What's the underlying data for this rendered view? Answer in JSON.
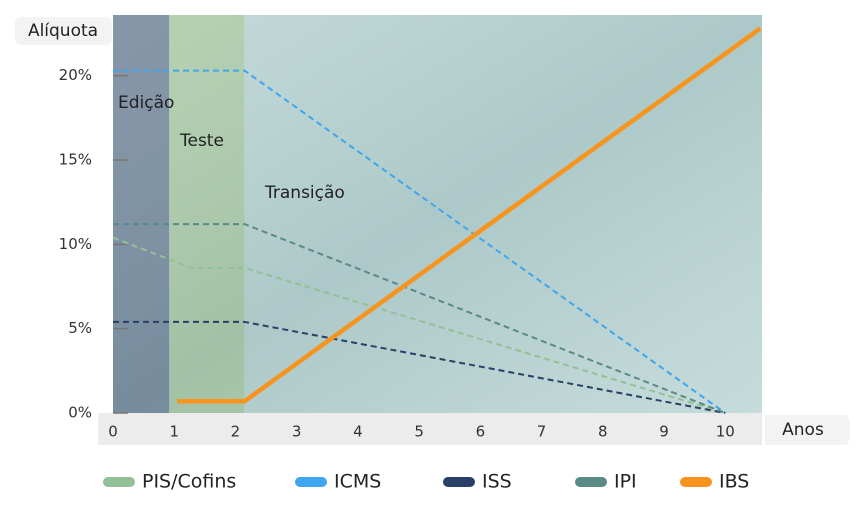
{
  "chart_data": {
    "type": "line",
    "y_label": "Alíquota",
    "x_label": "Anos",
    "phases": [
      {
        "label": "Edição",
        "start": 0,
        "end": 0.92,
        "color": "#6f8399"
      },
      {
        "label": "Teste",
        "start": 0.92,
        "end": 2.15,
        "color": "#a9c9a4"
      },
      {
        "label": "Transição",
        "start": 2.15,
        "end": 10.6,
        "color": "#b7d3d2"
      }
    ],
    "series": [
      {
        "name": "PIS/Cofins",
        "color": "#93c096",
        "line_style": "dashed",
        "x": [
          0,
          1.28,
          2.15,
          10
        ],
        "values": [
          10.4,
          8.6,
          8.6,
          0
        ]
      },
      {
        "name": "ICMS",
        "color": "#3fa5ee",
        "line_style": "dashed",
        "x": [
          0,
          2.15,
          10
        ],
        "values": [
          20.3,
          20.3,
          0
        ]
      },
      {
        "name": "ISS",
        "color": "#2a3f66",
        "line_style": "dashed",
        "x": [
          0,
          2.15,
          10
        ],
        "values": [
          5.4,
          5.4,
          0
        ]
      },
      {
        "name": "IPI",
        "color": "#5a8a85",
        "line_style": "dashed",
        "x": [
          0,
          2.15,
          10
        ],
        "values": [
          11.2,
          11.2,
          0
        ]
      },
      {
        "name": "IBS",
        "color": "#f7941d",
        "line_style": "solid",
        "x": [
          1.05,
          2.15,
          10.57
        ],
        "values": [
          0.7,
          0.7,
          22.8
        ]
      }
    ],
    "xlim": [
      0,
      10.6
    ],
    "xticks": [
      0,
      1,
      2,
      3,
      4,
      5,
      6,
      7,
      8,
      9,
      10
    ],
    "ylim": [
      0,
      23.6
    ],
    "yticks": [
      {
        "value": 0,
        "label": "0%"
      },
      {
        "value": 5,
        "label": "5%"
      },
      {
        "value": 10,
        "label": "10%"
      },
      {
        "value": 15,
        "label": "15%"
      },
      {
        "value": 20,
        "label": "20%"
      }
    ]
  }
}
